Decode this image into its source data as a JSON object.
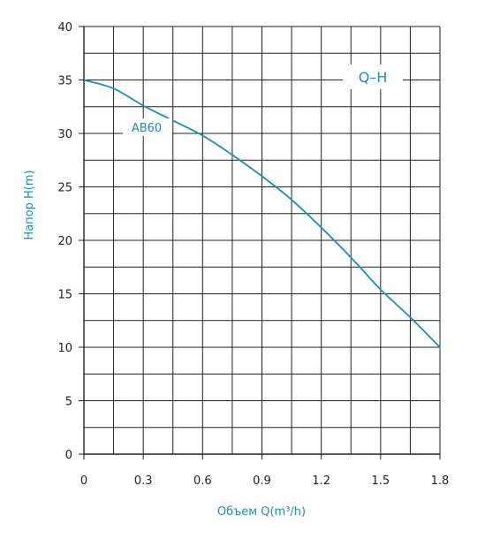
{
  "chart_data": {
    "type": "line",
    "title": "Q–H",
    "xlabel": "Объем Q(m³/h)",
    "ylabel": "Напор H(m)",
    "xlim": [
      0,
      1.8
    ],
    "ylim": [
      0,
      40
    ],
    "x_ticks": [
      "0",
      "0.3",
      "0.6",
      "0.9",
      "1.2",
      "1.5",
      "1.8"
    ],
    "y_ticks": [
      "0",
      "5",
      "10",
      "15",
      "20",
      "25",
      "30",
      "35",
      "40"
    ],
    "grid": true,
    "series": [
      {
        "name": "AB60",
        "x": [
          0,
          0.15,
          0.3,
          0.45,
          0.6,
          0.75,
          0.9,
          1.05,
          1.2,
          1.35,
          1.5,
          1.65,
          1.8
        ],
        "y": [
          35,
          34.2,
          32.6,
          31.2,
          29.8,
          28.0,
          26.0,
          23.8,
          21.2,
          18.4,
          15.4,
          12.8,
          10
        ]
      }
    ],
    "colors": {
      "series": "#1a8fb4",
      "text": "#1a8fb4",
      "grid": "#222222"
    }
  }
}
